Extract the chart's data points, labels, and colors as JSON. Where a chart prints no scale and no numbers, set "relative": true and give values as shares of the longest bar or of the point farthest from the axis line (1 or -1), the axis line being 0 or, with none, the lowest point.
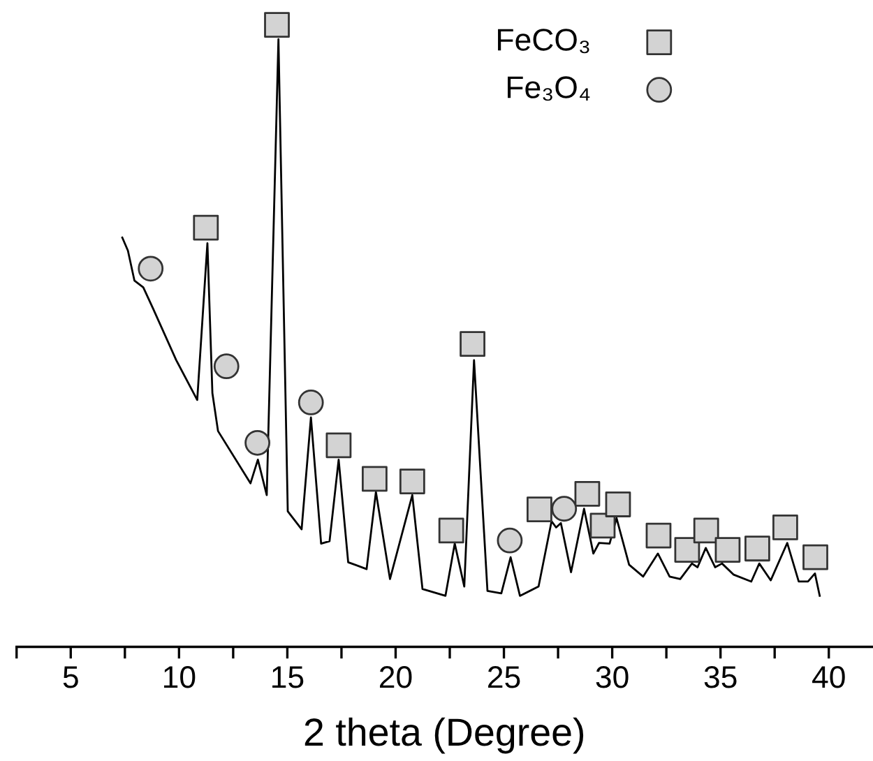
{
  "chart_data": {
    "type": "line",
    "xlabel": "2 theta (Degree)",
    "relative": true,
    "xlim": [
      2.5,
      42
    ],
    "xticks": [
      {
        "value": 2.5,
        "label": null
      },
      5,
      {
        "value": 7.5,
        "label": null
      },
      10,
      {
        "value": 12.5,
        "label": null
      },
      15,
      {
        "value": 17.5,
        "label": null
      },
      20,
      {
        "value": 22.5,
        "label": null
      },
      25,
      {
        "value": 27.5,
        "label": null
      },
      30,
      {
        "value": 32.5,
        "label": null
      },
      35,
      {
        "value": 37.5,
        "label": null
      },
      40
    ],
    "legend": "top right",
    "grid": false,
    "series": [
      {
        "color": "#000000",
        "marker": "none",
        "x": [
          7.38,
          7.64,
          7.94,
          8.35,
          8.8,
          9.87,
          10.84,
          11.31,
          11.54,
          11.8,
          13.3,
          13.64,
          14.05,
          14.59,
          15.02,
          15.66,
          16.09,
          16.56,
          16.95,
          17.37,
          17.81,
          18.66,
          19.09,
          19.74,
          20.77,
          21.24,
          22.3,
          22.73,
          23.17,
          23.62,
          24.24,
          24.88,
          25.31,
          25.74,
          26.6,
          27.2,
          27.41,
          27.63,
          28.1,
          28.7,
          29.13,
          29.39,
          29.88,
          30.2,
          30.78,
          31.43,
          32.11,
          32.65,
          33.14,
          33.68,
          33.94,
          34.32,
          34.75,
          35.07,
          35.61,
          36.42,
          36.79,
          37.32,
          38.08,
          38.61,
          39.04,
          39.36,
          39.58
        ],
        "values": [
          0.658,
          0.637,
          0.589,
          0.578,
          0.544,
          0.461,
          0.397,
          0.649,
          0.408,
          0.347,
          0.263,
          0.301,
          0.244,
          0.977,
          0.218,
          0.189,
          0.369,
          0.166,
          0.17,
          0.301,
          0.136,
          0.125,
          0.249,
          0.109,
          0.244,
          0.093,
          0.082,
          0.166,
          0.097,
          0.461,
          0.09,
          0.086,
          0.144,
          0.082,
          0.097,
          0.202,
          0.192,
          0.199,
          0.12,
          0.222,
          0.15,
          0.167,
          0.166,
          0.207,
          0.132,
          0.113,
          0.15,
          0.113,
          0.109,
          0.134,
          0.128,
          0.159,
          0.128,
          0.134,
          0.116,
          0.105,
          0.134,
          0.107,
          0.167,
          0.105,
          0.105,
          0.118,
          0.082
        ]
      },
      {
        "type": "scatter",
        "name": "FeCO₃",
        "color": "#d3d3d3",
        "marker": "square",
        "x": [
          11.24,
          14.52,
          17.37,
          19.03,
          20.77,
          22.57,
          23.55,
          26.64,
          28.85,
          29.56,
          30.27,
          32.14,
          33.46,
          34.34,
          35.33,
          36.7,
          37.99,
          39.38
        ],
        "values": [
          0.674,
          1,
          0.324,
          0.27,
          0.266,
          0.187,
          0.487,
          0.221,
          0.246,
          0.195,
          0.229,
          0.179,
          0.156,
          0.187,
          0.156,
          0.158,
          0.192,
          0.144
        ]
      },
      {
        "type": "scatter",
        "name": "Fe₃O₄",
        "color": "#d3d3d3",
        "marker": "circle",
        "x": [
          8.69,
          12.19,
          13.62,
          16.09,
          25.27,
          27.78
        ],
        "values": [
          0.608,
          0.451,
          0.328,
          0.393,
          0.171,
          0.222
        ]
      }
    ]
  }
}
